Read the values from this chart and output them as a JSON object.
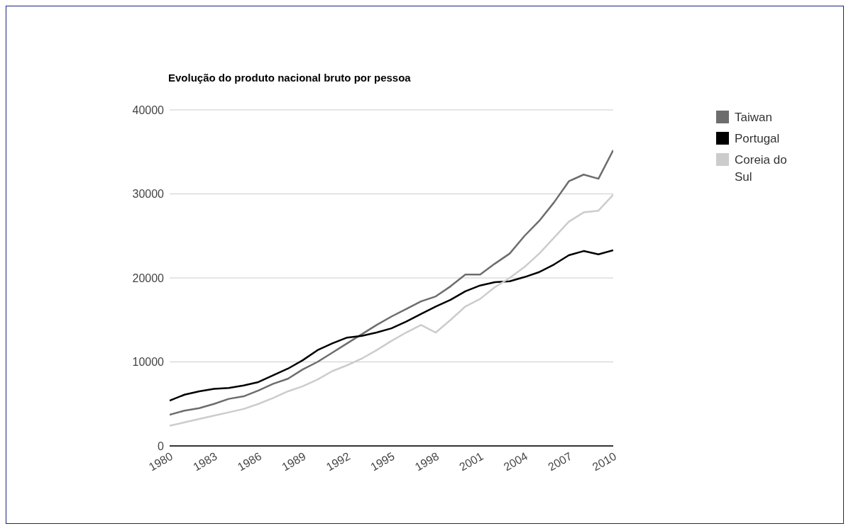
{
  "chart_data": {
    "type": "line",
    "title": "Evolução do produto nacional bruto por pessoa",
    "x": [
      1980,
      1981,
      1982,
      1983,
      1984,
      1985,
      1986,
      1987,
      1988,
      1989,
      1990,
      1991,
      1992,
      1993,
      1994,
      1995,
      1996,
      1997,
      1998,
      1999,
      2000,
      2001,
      2002,
      2003,
      2004,
      2005,
      2006,
      2007,
      2008,
      2009,
      2010
    ],
    "series": [
      {
        "name": "Taiwan",
        "color": "#6d6d6d",
        "values": [
          3700,
          4200,
          4500,
          5000,
          5600,
          5900,
          6600,
          7400,
          8000,
          9100,
          10000,
          11100,
          12200,
          13300,
          14400,
          15400,
          16300,
          17200,
          17800,
          19000,
          20400,
          20400,
          21700,
          22900,
          25000,
          26800,
          29000,
          31500,
          32300,
          31800,
          35200
        ]
      },
      {
        "name": "Portugal",
        "color": "#000000",
        "values": [
          5400,
          6100,
          6500,
          6800,
          6900,
          7200,
          7600,
          8400,
          9200,
          10200,
          11400,
          12200,
          12900,
          13100,
          13500,
          14000,
          14800,
          15700,
          16600,
          17400,
          18400,
          19100,
          19500,
          19600,
          20100,
          20700,
          21600,
          22700,
          23200,
          22800,
          23300
        ]
      },
      {
        "name": "Coreia do Sul",
        "color": "#cccccc",
        "values": [
          2400,
          2800,
          3200,
          3600,
          4000,
          4400,
          5000,
          5700,
          6500,
          7100,
          7900,
          8900,
          9600,
          10400,
          11400,
          12500,
          13500,
          14400,
          13500,
          15000,
          16600,
          17500,
          18900,
          20000,
          21300,
          22900,
          24800,
          26700,
          27800,
          28000,
          29900
        ]
      }
    ],
    "xlim": [
      1980,
      2010
    ],
    "xticks": [
      1980,
      1983,
      1986,
      1989,
      1992,
      1995,
      1998,
      2001,
      2004,
      2007,
      2010
    ],
    "ylim": [
      0,
      40000
    ],
    "yticks": [
      0,
      10000,
      20000,
      30000,
      40000
    ],
    "grid": "y",
    "legend": "top right",
    "marker": "none",
    "line_style": "solid"
  }
}
